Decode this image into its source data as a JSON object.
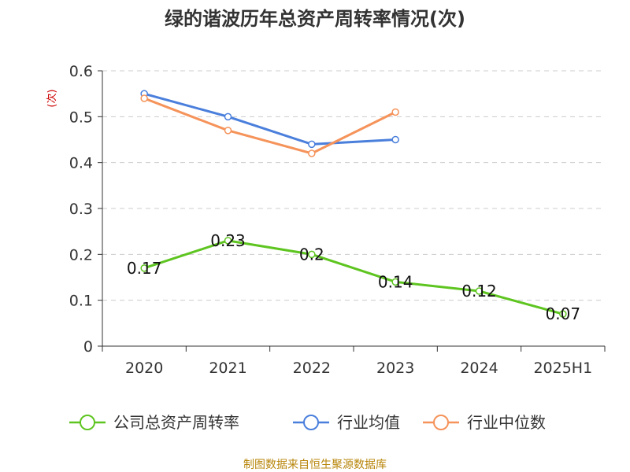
{
  "chart_data": {
    "type": "line",
    "title": "绿的谐波历年总资产周转率情况(次)",
    "ylabel": "(次)",
    "xlabel": "",
    "categories": [
      "2020",
      "2021",
      "2022",
      "2023",
      "2024",
      "2025H1"
    ],
    "yticks": [
      "0",
      "0.1",
      "0.2",
      "0.3",
      "0.4",
      "0.5",
      "0.6"
    ],
    "ylim": [
      0,
      0.6
    ],
    "grid": true,
    "legend_position": "bottom",
    "series": [
      {
        "name": "公司总资产周转率",
        "color": "#5ec520",
        "values": [
          0.17,
          0.23,
          0.2,
          0.14,
          0.12,
          0.07
        ],
        "labels": [
          "0.17",
          "0.23",
          "0.2",
          "0.14",
          "0.12",
          "0.07"
        ]
      },
      {
        "name": "行业均值",
        "color": "#4a7fdc",
        "values": [
          0.55,
          0.5,
          0.44,
          0.45,
          null,
          null
        ]
      },
      {
        "name": "行业中位数",
        "color": "#f5935a",
        "values": [
          0.54,
          0.47,
          0.42,
          0.51,
          null,
          null
        ]
      }
    ]
  },
  "source": "制图数据来自恒生聚源数据库"
}
